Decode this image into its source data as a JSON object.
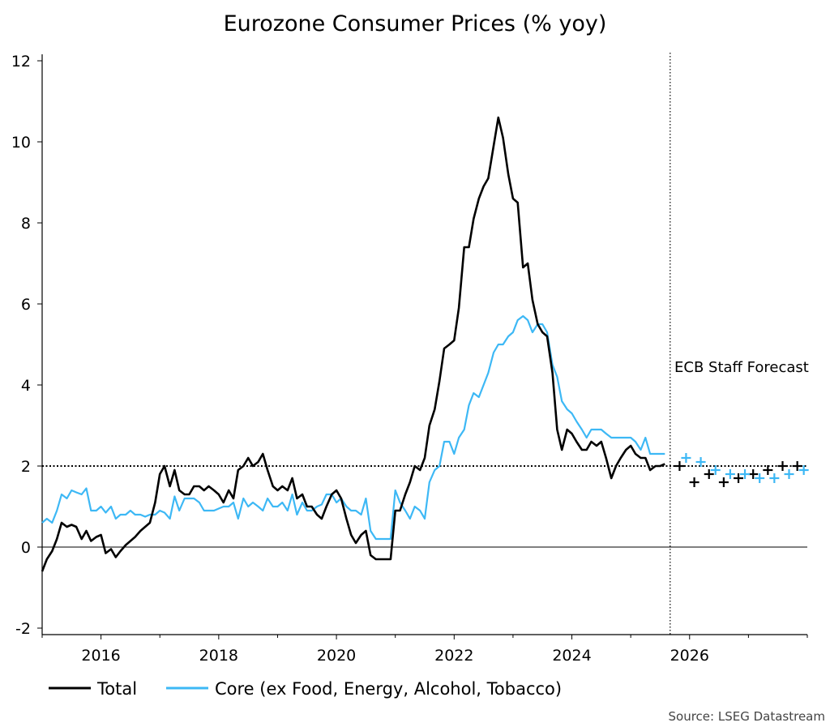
{
  "chart_data": {
    "type": "line",
    "title": "Eurozone Consumer Prices (% yoy)",
    "ylim": [
      -2,
      12
    ],
    "yticks": [
      -2,
      0,
      2,
      4,
      6,
      8,
      10,
      12
    ],
    "xlim": [
      2015.0,
      2028.0
    ],
    "xticks": [
      2016,
      2018,
      2020,
      2022,
      2024,
      2026
    ],
    "grid": false,
    "legend_position": "bottom-left",
    "reference_line": 2,
    "forecast_start": 2025.67,
    "annotation": "ECB Staff Forecast",
    "source": "Source: LSEG Datastream",
    "series": [
      {
        "name": "Total",
        "color": "#000000",
        "points": [
          [
            2015.0,
            -0.6
          ],
          [
            2015.08,
            -0.3
          ],
          [
            2015.17,
            -0.1
          ],
          [
            2015.25,
            0.2
          ],
          [
            2015.33,
            0.6
          ],
          [
            2015.42,
            0.5
          ],
          [
            2015.5,
            0.55
          ],
          [
            2015.58,
            0.5
          ],
          [
            2015.67,
            0.2
          ],
          [
            2015.75,
            0.4
          ],
          [
            2015.83,
            0.15
          ],
          [
            2015.92,
            0.25
          ],
          [
            2016.0,
            0.3
          ],
          [
            2016.08,
            -0.15
          ],
          [
            2016.17,
            -0.05
          ],
          [
            2016.25,
            -0.25
          ],
          [
            2016.33,
            -0.1
          ],
          [
            2016.42,
            0.05
          ],
          [
            2016.5,
            0.15
          ],
          [
            2016.58,
            0.25
          ],
          [
            2016.67,
            0.4
          ],
          [
            2016.75,
            0.5
          ],
          [
            2016.83,
            0.6
          ],
          [
            2016.92,
            1.1
          ],
          [
            2017.0,
            1.8
          ],
          [
            2017.08,
            2.0
          ],
          [
            2017.17,
            1.5
          ],
          [
            2017.25,
            1.9
          ],
          [
            2017.33,
            1.4
          ],
          [
            2017.42,
            1.3
          ],
          [
            2017.5,
            1.3
          ],
          [
            2017.58,
            1.5
          ],
          [
            2017.67,
            1.5
          ],
          [
            2017.75,
            1.4
          ],
          [
            2017.83,
            1.5
          ],
          [
            2017.92,
            1.4
          ],
          [
            2018.0,
            1.3
          ],
          [
            2018.08,
            1.1
          ],
          [
            2018.17,
            1.4
          ],
          [
            2018.25,
            1.2
          ],
          [
            2018.33,
            1.9
          ],
          [
            2018.42,
            2.0
          ],
          [
            2018.5,
            2.2
          ],
          [
            2018.58,
            2.0
          ],
          [
            2018.67,
            2.1
          ],
          [
            2018.75,
            2.3
          ],
          [
            2018.83,
            1.9
          ],
          [
            2018.92,
            1.5
          ],
          [
            2019.0,
            1.4
          ],
          [
            2019.08,
            1.5
          ],
          [
            2019.17,
            1.4
          ],
          [
            2019.25,
            1.7
          ],
          [
            2019.33,
            1.2
          ],
          [
            2019.42,
            1.3
          ],
          [
            2019.5,
            1.0
          ],
          [
            2019.58,
            1.0
          ],
          [
            2019.67,
            0.8
          ],
          [
            2019.75,
            0.7
          ],
          [
            2019.83,
            1.0
          ],
          [
            2019.92,
            1.3
          ],
          [
            2020.0,
            1.4
          ],
          [
            2020.08,
            1.2
          ],
          [
            2020.17,
            0.7
          ],
          [
            2020.25,
            0.3
          ],
          [
            2020.33,
            0.1
          ],
          [
            2020.42,
            0.3
          ],
          [
            2020.5,
            0.4
          ],
          [
            2020.58,
            -0.2
          ],
          [
            2020.67,
            -0.3
          ],
          [
            2020.75,
            -0.3
          ],
          [
            2020.83,
            -0.3
          ],
          [
            2020.92,
            -0.3
          ],
          [
            2021.0,
            0.9
          ],
          [
            2021.08,
            0.9
          ],
          [
            2021.17,
            1.3
          ],
          [
            2021.25,
            1.6
          ],
          [
            2021.33,
            2.0
          ],
          [
            2021.42,
            1.9
          ],
          [
            2021.5,
            2.2
          ],
          [
            2021.58,
            3.0
          ],
          [
            2021.67,
            3.4
          ],
          [
            2021.75,
            4.1
          ],
          [
            2021.83,
            4.9
          ],
          [
            2021.92,
            5.0
          ],
          [
            2022.0,
            5.1
          ],
          [
            2022.08,
            5.9
          ],
          [
            2022.17,
            7.4
          ],
          [
            2022.25,
            7.4
          ],
          [
            2022.33,
            8.1
          ],
          [
            2022.42,
            8.6
          ],
          [
            2022.5,
            8.9
          ],
          [
            2022.58,
            9.1
          ],
          [
            2022.67,
            9.9
          ],
          [
            2022.75,
            10.6
          ],
          [
            2022.83,
            10.1
          ],
          [
            2022.92,
            9.2
          ],
          [
            2023.0,
            8.6
          ],
          [
            2023.08,
            8.5
          ],
          [
            2023.17,
            6.9
          ],
          [
            2023.25,
            7.0
          ],
          [
            2023.33,
            6.1
          ],
          [
            2023.42,
            5.5
          ],
          [
            2023.5,
            5.3
          ],
          [
            2023.58,
            5.2
          ],
          [
            2023.67,
            4.3
          ],
          [
            2023.75,
            2.9
          ],
          [
            2023.83,
            2.4
          ],
          [
            2023.92,
            2.9
          ],
          [
            2024.0,
            2.8
          ],
          [
            2024.08,
            2.6
          ],
          [
            2024.17,
            2.4
          ],
          [
            2024.25,
            2.4
          ],
          [
            2024.33,
            2.6
          ],
          [
            2024.42,
            2.5
          ],
          [
            2024.5,
            2.6
          ],
          [
            2024.58,
            2.2
          ],
          [
            2024.67,
            1.7
          ],
          [
            2024.75,
            2.0
          ],
          [
            2024.83,
            2.2
          ],
          [
            2024.92,
            2.4
          ],
          [
            2025.0,
            2.5
          ],
          [
            2025.08,
            2.3
          ],
          [
            2025.17,
            2.2
          ],
          [
            2025.25,
            2.2
          ],
          [
            2025.33,
            1.9
          ],
          [
            2025.42,
            2.0
          ],
          [
            2025.5,
            2.0
          ],
          [
            2025.58,
            2.05
          ]
        ],
        "forecast": [
          [
            2025.83,
            2.0
          ],
          [
            2026.08,
            1.6
          ],
          [
            2026.33,
            1.8
          ],
          [
            2026.58,
            1.6
          ],
          [
            2026.83,
            1.7
          ],
          [
            2027.08,
            1.8
          ],
          [
            2027.33,
            1.9
          ],
          [
            2027.58,
            2.0
          ],
          [
            2027.83,
            2.0
          ]
        ]
      },
      {
        "name": "Core (ex Food, Energy, Alcohol, Tobacco)",
        "color": "#3db8f5",
        "points": [
          [
            2015.0,
            0.6
          ],
          [
            2015.08,
            0.7
          ],
          [
            2015.17,
            0.6
          ],
          [
            2015.25,
            0.9
          ],
          [
            2015.33,
            1.3
          ],
          [
            2015.42,
            1.2
          ],
          [
            2015.5,
            1.4
          ],
          [
            2015.58,
            1.35
          ],
          [
            2015.67,
            1.3
          ],
          [
            2015.75,
            1.45
          ],
          [
            2015.83,
            0.9
          ],
          [
            2015.92,
            0.9
          ],
          [
            2016.0,
            1.0
          ],
          [
            2016.08,
            0.85
          ],
          [
            2016.17,
            1.0
          ],
          [
            2016.25,
            0.7
          ],
          [
            2016.33,
            0.8
          ],
          [
            2016.42,
            0.8
          ],
          [
            2016.5,
            0.9
          ],
          [
            2016.58,
            0.8
          ],
          [
            2016.67,
            0.8
          ],
          [
            2016.75,
            0.75
          ],
          [
            2016.83,
            0.8
          ],
          [
            2016.92,
            0.8
          ],
          [
            2017.0,
            0.9
          ],
          [
            2017.08,
            0.85
          ],
          [
            2017.17,
            0.7
          ],
          [
            2017.25,
            1.25
          ],
          [
            2017.33,
            0.9
          ],
          [
            2017.42,
            1.2
          ],
          [
            2017.5,
            1.2
          ],
          [
            2017.58,
            1.2
          ],
          [
            2017.67,
            1.1
          ],
          [
            2017.75,
            0.9
          ],
          [
            2017.83,
            0.9
          ],
          [
            2017.92,
            0.9
          ],
          [
            2018.0,
            0.95
          ],
          [
            2018.08,
            1.0
          ],
          [
            2018.17,
            1.0
          ],
          [
            2018.25,
            1.1
          ],
          [
            2018.33,
            0.7
          ],
          [
            2018.42,
            1.2
          ],
          [
            2018.5,
            1.0
          ],
          [
            2018.58,
            1.1
          ],
          [
            2018.67,
            1.0
          ],
          [
            2018.75,
            0.9
          ],
          [
            2018.83,
            1.2
          ],
          [
            2018.92,
            1.0
          ],
          [
            2019.0,
            1.0
          ],
          [
            2019.08,
            1.1
          ],
          [
            2019.17,
            0.9
          ],
          [
            2019.25,
            1.3
          ],
          [
            2019.33,
            0.8
          ],
          [
            2019.42,
            1.1
          ],
          [
            2019.5,
            0.9
          ],
          [
            2019.58,
            0.9
          ],
          [
            2019.67,
            1.0
          ],
          [
            2019.75,
            1.05
          ],
          [
            2019.83,
            1.3
          ],
          [
            2019.92,
            1.3
          ],
          [
            2020.0,
            1.1
          ],
          [
            2020.08,
            1.2
          ],
          [
            2020.17,
            1.0
          ],
          [
            2020.25,
            0.9
          ],
          [
            2020.33,
            0.9
          ],
          [
            2020.42,
            0.8
          ],
          [
            2020.5,
            1.2
          ],
          [
            2020.58,
            0.4
          ],
          [
            2020.67,
            0.2
          ],
          [
            2020.75,
            0.2
          ],
          [
            2020.83,
            0.2
          ],
          [
            2020.92,
            0.2
          ],
          [
            2021.0,
            1.4
          ],
          [
            2021.08,
            1.1
          ],
          [
            2021.17,
            0.9
          ],
          [
            2021.25,
            0.7
          ],
          [
            2021.33,
            1.0
          ],
          [
            2021.42,
            0.9
          ],
          [
            2021.5,
            0.7
          ],
          [
            2021.58,
            1.6
          ],
          [
            2021.67,
            1.9
          ],
          [
            2021.75,
            2.0
          ],
          [
            2021.83,
            2.6
          ],
          [
            2021.92,
            2.6
          ],
          [
            2022.0,
            2.3
          ],
          [
            2022.08,
            2.7
          ],
          [
            2022.17,
            2.9
          ],
          [
            2022.25,
            3.5
          ],
          [
            2022.33,
            3.8
          ],
          [
            2022.42,
            3.7
          ],
          [
            2022.5,
            4.0
          ],
          [
            2022.58,
            4.3
          ],
          [
            2022.67,
            4.8
          ],
          [
            2022.75,
            5.0
          ],
          [
            2022.83,
            5.0
          ],
          [
            2022.92,
            5.2
          ],
          [
            2023.0,
            5.3
          ],
          [
            2023.08,
            5.6
          ],
          [
            2023.17,
            5.7
          ],
          [
            2023.25,
            5.6
          ],
          [
            2023.33,
            5.3
          ],
          [
            2023.42,
            5.5
          ],
          [
            2023.5,
            5.5
          ],
          [
            2023.58,
            5.3
          ],
          [
            2023.67,
            4.5
          ],
          [
            2023.75,
            4.2
          ],
          [
            2023.83,
            3.6
          ],
          [
            2023.92,
            3.4
          ],
          [
            2024.0,
            3.3
          ],
          [
            2024.08,
            3.1
          ],
          [
            2024.17,
            2.9
          ],
          [
            2024.25,
            2.7
          ],
          [
            2024.33,
            2.9
          ],
          [
            2024.42,
            2.9
          ],
          [
            2024.5,
            2.9
          ],
          [
            2024.58,
            2.8
          ],
          [
            2024.67,
            2.7
          ],
          [
            2024.75,
            2.7
          ],
          [
            2024.83,
            2.7
          ],
          [
            2024.92,
            2.7
          ],
          [
            2025.0,
            2.7
          ],
          [
            2025.08,
            2.6
          ],
          [
            2025.17,
            2.4
          ],
          [
            2025.25,
            2.7
          ],
          [
            2025.33,
            2.3
          ],
          [
            2025.42,
            2.3
          ],
          [
            2025.5,
            2.3
          ],
          [
            2025.58,
            2.3
          ]
        ],
        "forecast": [
          [
            2025.83,
            2.2
          ],
          [
            2026.08,
            2.1
          ],
          [
            2026.33,
            1.9
          ],
          [
            2026.58,
            1.8
          ],
          [
            2026.83,
            1.8
          ],
          [
            2027.08,
            1.7
          ],
          [
            2027.33,
            1.7
          ],
          [
            2027.58,
            1.8
          ],
          [
            2027.83,
            1.9
          ]
        ]
      }
    ]
  }
}
